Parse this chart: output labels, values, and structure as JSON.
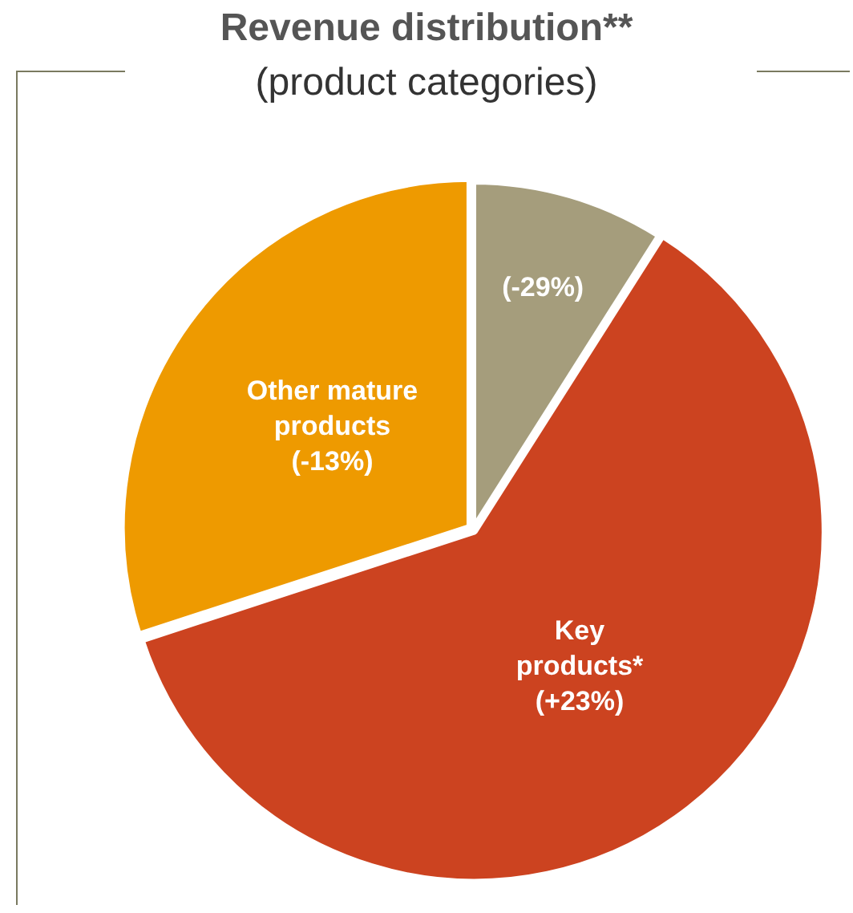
{
  "chart_data": {
    "type": "pie",
    "title": "Revenue distribution**",
    "subtitle": "(product categories)",
    "categories": [
      "(-29%)",
      "Key\nproducts*\n(+23%)",
      "Other mature\nproducts\n(-13%)"
    ],
    "values": [
      9,
      61,
      30
    ],
    "colors": [
      "#a59d7c",
      "#cc4320",
      "#ee9a00"
    ],
    "legend": false
  }
}
